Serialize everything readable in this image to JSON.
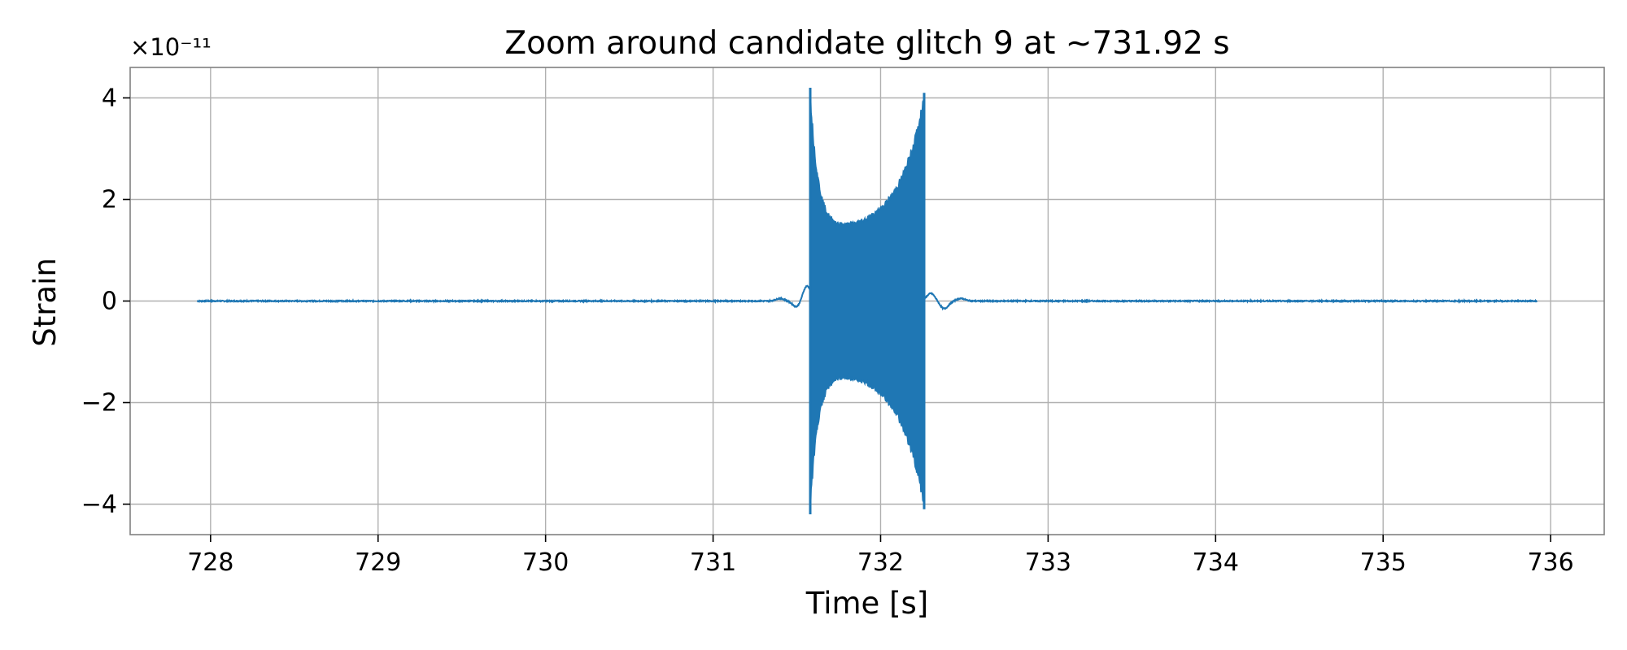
{
  "chart_data": {
    "type": "line",
    "title": "Zoom around candidate glitch 9 at ~731.92 s",
    "xlabel": "Time [s]",
    "ylabel": "Strain",
    "y_offset_label": "×10⁻¹¹",
    "xlim": [
      727.52,
      736.32
    ],
    "ylim": [
      -4.6,
      4.6
    ],
    "x_ticks": [
      728,
      729,
      730,
      731,
      732,
      733,
      734,
      735,
      736
    ],
    "x_tick_labels": [
      "728",
      "729",
      "730",
      "731",
      "732",
      "733",
      "734",
      "735",
      "736"
    ],
    "y_ticks": [
      -4,
      -2,
      0,
      2,
      4
    ],
    "y_tick_labels": [
      "−4",
      "−2",
      "0",
      "2",
      "4"
    ],
    "grid": true,
    "legend": "none",
    "series": [
      {
        "color": "#1f77b4",
        "x_range": [
          727.92,
          735.92
        ],
        "burst": {
          "start": 731.58,
          "end": 732.26,
          "peak_start": 4.2,
          "trough_start": -4.2,
          "mid_level": 1.4,
          "peak_end": 4.1,
          "trough_end": -4.1
        },
        "baseline_noise": 0.02,
        "ringing": [
          {
            "t": 731.4,
            "value": 0.05
          },
          {
            "t": 731.5,
            "value": -0.12
          },
          {
            "t": 731.56,
            "value": 0.3
          },
          {
            "t": 732.3,
            "value": 0.15
          },
          {
            "t": 732.38,
            "value": -0.15
          },
          {
            "t": 732.48,
            "value": 0.05
          }
        ]
      }
    ]
  }
}
